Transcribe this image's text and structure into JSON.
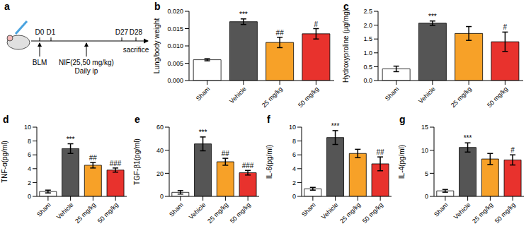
{
  "diagram": {
    "panel": "a",
    "timepoints": [
      "D0",
      "D1",
      "D27",
      "D28"
    ],
    "events": [
      {
        "label": "BLM"
      },
      {
        "label": "NIF(25,50 mg/kg)",
        "sublabel": "Daily ip"
      },
      {
        "label": "sacrifice"
      }
    ]
  },
  "chart_data": [
    {
      "panel": "b",
      "type": "bar",
      "y_label": "Lung/body weight",
      "categories": [
        "Sham",
        "Vehicle",
        "25 mg/kg",
        "50 mg/kg"
      ],
      "values": [
        0.006,
        0.017,
        0.011,
        0.0135
      ],
      "error": [
        0.0003,
        0.0008,
        0.0015,
        0.0015
      ],
      "annotations": [
        null,
        "***",
        "##",
        "#"
      ],
      "colors": [
        "#ffffff",
        "#555555",
        "#f7a128",
        "#e8322d"
      ],
      "ylim": [
        0,
        0.02
      ],
      "yticks": [
        {
          "value": 0,
          "label": "0.000"
        },
        0.005,
        {
          "value": 0.01,
          "label": "0.010"
        },
        0.015,
        {
          "value": 0.02,
          "label": "0.020"
        }
      ]
    },
    {
      "panel": "c",
      "type": "bar",
      "y_label": "Hydroxyproline (μg/mg)",
      "categories": [
        "Sham",
        "Vehicle",
        "25 mg/kg",
        "50 mg/kg"
      ],
      "values": [
        0.42,
        2.07,
        1.7,
        1.4
      ],
      "error": [
        0.1,
        0.08,
        0.25,
        0.35
      ],
      "annotations": [
        null,
        "***",
        null,
        "#"
      ],
      "colors": [
        "#ffffff",
        "#555555",
        "#f7a128",
        "#e8322d"
      ],
      "ylim": [
        0,
        2.5
      ],
      "yticks": [
        {
          "value": 0,
          "label": "0.0"
        },
        0.5,
        {
          "value": 1,
          "label": "1.0"
        },
        1.5,
        {
          "value": 2,
          "label": "2.0"
        },
        2.5
      ]
    },
    {
      "panel": "d",
      "type": "bar",
      "y_label": "TNF-α(pg/ml)",
      "categories": [
        "Sham",
        "Vehicle",
        "25 mg/kg",
        "50 mg/kg"
      ],
      "values": [
        0.7,
        6.9,
        4.5,
        3.8
      ],
      "error": [
        0.2,
        0.7,
        0.4,
        0.3
      ],
      "annotations": [
        null,
        "***",
        "##",
        "###"
      ],
      "colors": [
        "#ffffff",
        "#555555",
        "#f7a128",
        "#e8322d"
      ],
      "ylim": [
        0,
        10
      ],
      "yticks": [
        0,
        2,
        4,
        6,
        8,
        10
      ]
    },
    {
      "panel": "e",
      "type": "bar",
      "y_label": "TGF-β1(pg/ml)",
      "categories": [
        "Sham",
        "Vehicle",
        "25 mg/kg",
        "50 mg/kg"
      ],
      "values": [
        3.5,
        45.5,
        30,
        20.5
      ],
      "error": [
        1.5,
        6,
        3,
        2
      ],
      "annotations": [
        null,
        "***",
        "##",
        "###"
      ],
      "colors": [
        "#ffffff",
        "#555555",
        "#f7a128",
        "#e8322d"
      ],
      "ylim": [
        0,
        60
      ],
      "yticks": [
        0,
        20,
        40,
        60
      ]
    },
    {
      "panel": "f",
      "type": "bar",
      "y_label": "IL-6(pg/ml)",
      "categories": [
        "Sham",
        "Vehicle",
        "25 mg/kg",
        "50 mg/kg"
      ],
      "values": [
        1.1,
        8.5,
        6.2,
        4.7
      ],
      "error": [
        0.2,
        1.0,
        0.6,
        1.0
      ],
      "annotations": [
        null,
        "***",
        null,
        "##"
      ],
      "colors": [
        "#ffffff",
        "#555555",
        "#f7a128",
        "#e8322d"
      ],
      "ylim": [
        0,
        10
      ],
      "yticks": [
        0,
        2,
        4,
        6,
        8,
        10
      ]
    },
    {
      "panel": "g",
      "type": "bar",
      "y_label": "IL-4(pg/ml)",
      "categories": [
        "Sham",
        "Vehicle",
        "25 mg/kg",
        "50 mg/kg"
      ],
      "values": [
        1.2,
        10.6,
        8.1,
        7.9
      ],
      "error": [
        0.3,
        1.0,
        1.2,
        1.1
      ],
      "annotations": [
        null,
        "***",
        null,
        "#"
      ],
      "colors": [
        "#ffffff",
        "#555555",
        "#f7a128",
        "#e8322d"
      ],
      "ylim": [
        0,
        15
      ],
      "yticks": [
        0,
        5,
        10,
        15
      ]
    }
  ]
}
